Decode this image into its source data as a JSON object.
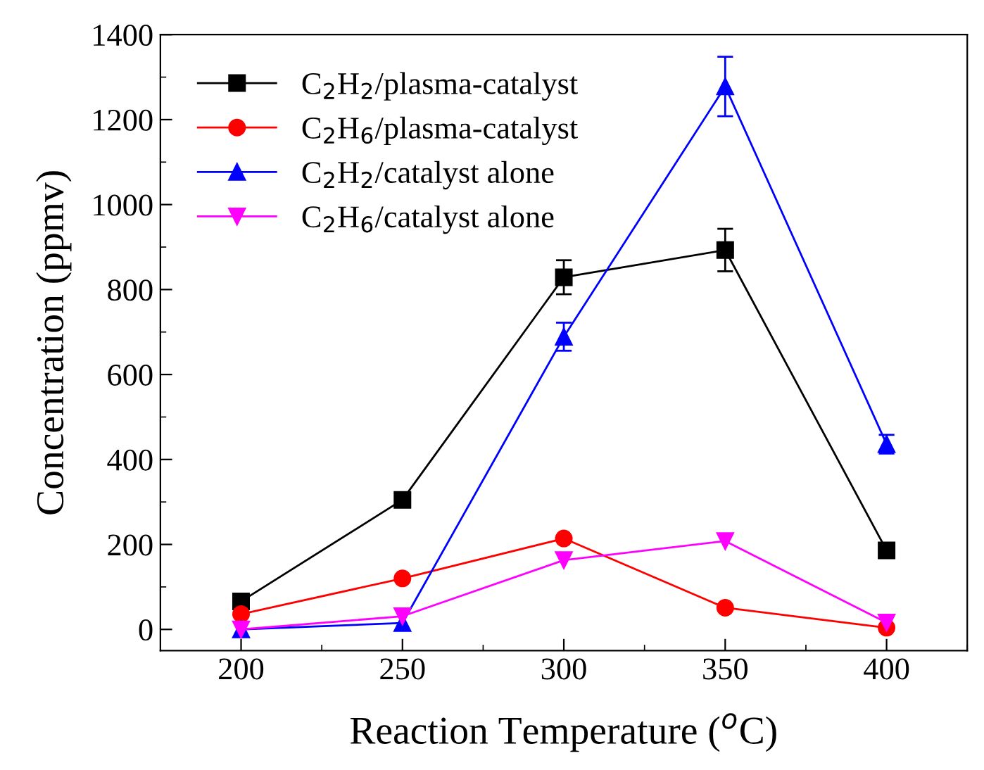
{
  "chart_data": {
    "type": "line",
    "xlabel": "Reaction Temperature ($^{o}$C)",
    "ylabel": "Concentration (ppmv)",
    "x": [
      200,
      250,
      300,
      350,
      400
    ],
    "series": [
      {
        "name": "C$_{2}$H$_{2}$/plasma-catalyst",
        "color": "#000000",
        "marker": "square",
        "values": [
          66,
          305,
          829,
          893,
          186
        ],
        "errors": [
          null,
          null,
          40,
          50,
          null
        ]
      },
      {
        "name": "C$_{2}$H$_{6}$/plasma-catalyst",
        "color": "#ff0000",
        "marker": "circle",
        "values": [
          36,
          120,
          214,
          51,
          4
        ]
      },
      {
        "name": "C$_{2}$H$_{2}$/catalyst alone",
        "color": "#0000ff",
        "marker": "triangle",
        "values": [
          0,
          15,
          689,
          1278,
          436
        ],
        "errors": [
          null,
          null,
          33,
          70,
          22
        ]
      },
      {
        "name": "C$_{2}$H$_{6}$/catalyst alone",
        "color": "#ff00ff",
        "marker": "triangle_down",
        "values": [
          0,
          31,
          163,
          208,
          16
        ]
      }
    ],
    "xlim": [
      175,
      425
    ],
    "xticks": [
      200,
      250,
      300,
      350,
      400
    ],
    "ylim": [
      -50,
      1400
    ],
    "yticks": [
      0,
      200,
      400,
      600,
      800,
      1000,
      1200,
      1400
    ],
    "grid": false,
    "legend": "top left",
    "line_style": "solid"
  }
}
